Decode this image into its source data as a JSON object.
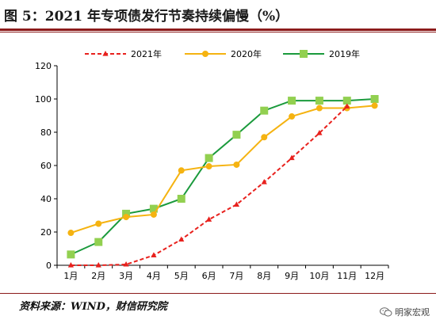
{
  "header": {
    "title": "图 5：2021 年专项债发行节奏持续偏慢（%）"
  },
  "footer": {
    "source": "资料来源：WIND，财信研究院",
    "brand": "明家宏观"
  },
  "chart_data": {
    "type": "line",
    "title": "图 5：2021 年专项债发行节奏持续偏慢（%）",
    "xlabel": "",
    "ylabel": "",
    "categories": [
      "1月",
      "2月",
      "3月",
      "4月",
      "5月",
      "6月",
      "7月",
      "8月",
      "9月",
      "10月",
      "11月",
      "12月"
    ],
    "ylim": [
      0,
      120
    ],
    "yticks": [
      0,
      20,
      40,
      60,
      80,
      100,
      120
    ],
    "grid": false,
    "legend_position": "top",
    "series": [
      {
        "name": "2021年",
        "color": "#e8211d",
        "dashed": true,
        "marker": "triangle",
        "values": [
          0,
          0,
          0.5,
          6,
          15.5,
          27.5,
          36.5,
          50,
          64.5,
          79.5,
          95.5,
          null
        ]
      },
      {
        "name": "2020年",
        "color": "#f5b311",
        "dashed": false,
        "marker": "circle",
        "values": [
          19.5,
          25,
          29,
          30.5,
          57,
          59.5,
          60.5,
          77,
          89.5,
          94.5,
          94.5,
          96
        ]
      },
      {
        "name": "2019年",
        "color": "#1a9a3c",
        "dashed": false,
        "marker": "square",
        "values": [
          6.5,
          14,
          31,
          34,
          40,
          64.5,
          78.5,
          93,
          99,
          99,
          99,
          100
        ]
      }
    ]
  }
}
